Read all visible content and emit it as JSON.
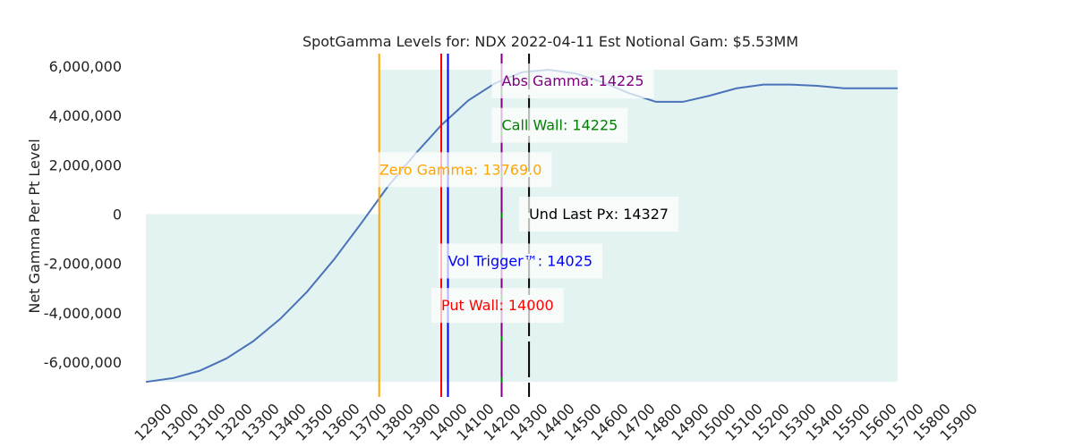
{
  "chart_data": {
    "type": "area",
    "title": "SpotGamma Levels for: NDX  2022-04-11 Est Notional Gam: $5.53MM",
    "xlabel": "",
    "ylabel": "Net Gamma Per Pt Level",
    "xlim": [
      12900,
      15900
    ],
    "ylim": [
      -7500000,
      6300000
    ],
    "x_ticks": [
      12900,
      13000,
      13100,
      13200,
      13300,
      13400,
      13500,
      13600,
      13700,
      13800,
      13900,
      14000,
      14100,
      14200,
      14300,
      14400,
      14500,
      14600,
      14700,
      14800,
      14900,
      15000,
      15100,
      15200,
      15300,
      15400,
      15500,
      15600,
      15700,
      15800,
      15900
    ],
    "y_ticks": [
      {
        "value": 6000000,
        "label": "6,000,000"
      },
      {
        "value": 4000000,
        "label": "4,000,000"
      },
      {
        "value": 2000000,
        "label": "2,000,000"
      },
      {
        "value": 0,
        "label": "0"
      },
      {
        "value": -2000000,
        "label": "-2,000,000"
      },
      {
        "value": -4000000,
        "label": "-4,000,000"
      },
      {
        "value": -6000000,
        "label": "-6,000,000"
      }
    ],
    "grid": false,
    "series": [
      {
        "x": [
          12900,
          13000,
          13100,
          13200,
          13300,
          13400,
          13500,
          13600,
          13700,
          13800,
          13900,
          14000,
          14100,
          14200,
          14300,
          14400,
          14500,
          14600,
          14700,
          14800,
          14900,
          15000,
          15100,
          15200,
          15300,
          15400,
          15500,
          15600,
          15700
        ],
        "values": [
          -6800000,
          -6650000,
          -6350000,
          -5850000,
          -5150000,
          -4250000,
          -3150000,
          -1850000,
          -400000,
          1100000,
          2400000,
          3600000,
          4600000,
          5300000,
          5750000,
          5850000,
          5700000,
          5350000,
          4900000,
          4550000,
          4550000,
          4800000,
          5100000,
          5250000,
          5250000,
          5200000,
          5100000,
          5100000,
          5100000
        ],
        "color": "#4a72b8",
        "fill": "#e3f3f1"
      }
    ],
    "levels": [
      {
        "label": "Zero Gamma: 13769.0",
        "x": 13769.0,
        "color": "#ffa500",
        "label_y": 1600000,
        "dashed": false
      },
      {
        "label": "Put Wall: 14000",
        "x": 14000,
        "color": "#ff0000",
        "label_y": -3900000,
        "dashed": false
      },
      {
        "label": "Vol Trigger™: 14025",
        "x": 14025,
        "color": "#0000ff",
        "label_y": -2100000,
        "dashed": false
      },
      {
        "label": "Call Wall: 14225",
        "x": 14225,
        "color": "#008000",
        "label_y": 3400000,
        "dashed": false
      },
      {
        "label": "Abs Gamma: 14225",
        "x": 14225,
        "color": "#800080",
        "label_y": 5200000,
        "dashed": true
      },
      {
        "label": "Und Last Px: 14327",
        "x": 14327,
        "color": "#000000",
        "label_y": -200000,
        "dashed": true
      }
    ]
  }
}
